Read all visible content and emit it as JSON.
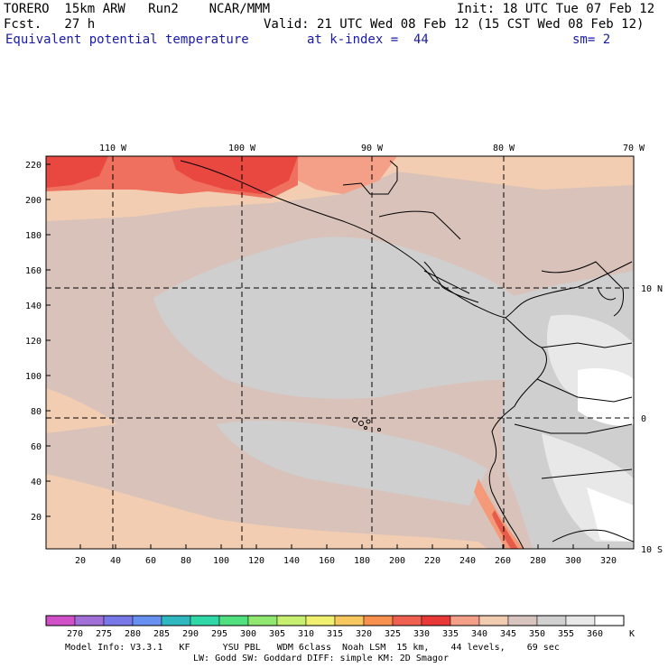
{
  "header": {
    "model": "TORERO  15km ARW   Run2    NCAR/MMM",
    "init": "Init: 18 UTC Tue 07 Feb 12",
    "fcst": "Fcst.   27 h",
    "valid": "Valid: 21 UTC Wed 08 Feb 12 (15 CST Wed 08 Feb 12)",
    "field": "Equivalent potential temperature",
    "level": "at k-index =  44",
    "smooth": "sm= 2"
  },
  "map": {
    "lon_labels": [
      "110 W",
      "100 W",
      "90 W",
      "80 W",
      "70 W"
    ],
    "lat_labels": [
      "10 N",
      "0",
      "10 S"
    ],
    "y_ticks": [
      "20",
      "40",
      "60",
      "80",
      "100",
      "120",
      "140",
      "160",
      "180",
      "200",
      "220"
    ],
    "x_ticks": [
      "20",
      "40",
      "60",
      "80",
      "100",
      "120",
      "140",
      "160",
      "180",
      "200",
      "220",
      "240",
      "260",
      "280",
      "300",
      "320"
    ]
  },
  "colorbar": {
    "labels": [
      "270",
      "275",
      "280",
      "285",
      "290",
      "295",
      "300",
      "305",
      "310",
      "315",
      "320",
      "325",
      "330",
      "335",
      "340",
      "345",
      "350",
      "355",
      "360"
    ],
    "unit": "K",
    "colors": [
      "#d050c8",
      "#a070d8",
      "#7878e8",
      "#6890f0",
      "#30b8c0",
      "#30d8a8",
      "#50e080",
      "#90e870",
      "#c8f070",
      "#f0f070",
      "#f8c860",
      "#f89050",
      "#f06050",
      "#e83838",
      "#f4a088",
      "#f2ccb0",
      "#d8c4be",
      "#d0d0d0",
      "#e8e8e8",
      "#ffffff"
    ]
  },
  "footer": {
    "line1": "Model Info: V3.3.1   KF      YSU PBL   WDM 6class  Noah LSM  15 km,    44 levels,    69 sec",
    "line2": "LW: Godd SW: Goddard DIFF: simple KM: 2D Smagor"
  }
}
